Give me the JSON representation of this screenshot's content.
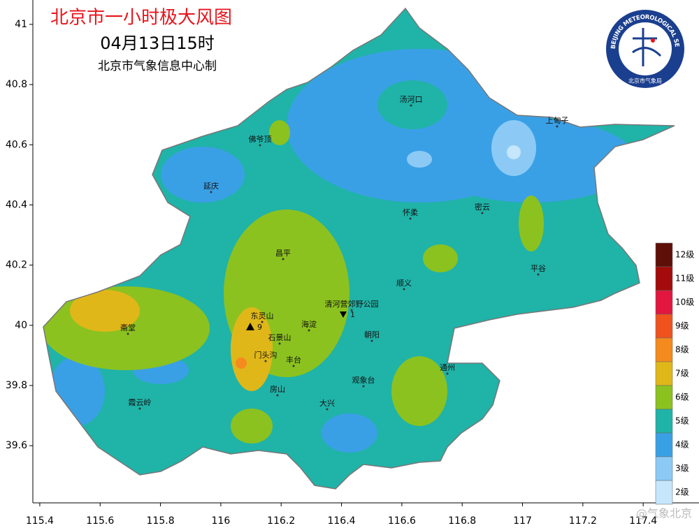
{
  "header": {
    "title": "北京市一小时极大风图",
    "time": "04月13日15时",
    "producer": "北京市气象信息中心制"
  },
  "logo": {
    "ring_text": "BEIJING METEOROLOGICAL SERVICE",
    "org": "北京市气象局"
  },
  "axes": {
    "xlim": [
      115.377,
      117.585
    ],
    "ylim": [
      39.41,
      41.081
    ],
    "xticks": [
      115.4,
      115.6,
      115.8,
      116,
      116.2,
      116.4,
      116.6,
      116.8,
      117,
      117.2,
      117.4
    ],
    "yticks": [
      39.6,
      39.8,
      40,
      40.2,
      40.4,
      40.6,
      40.8,
      41
    ]
  },
  "places": [
    "汤河口",
    "上甸子",
    "佛爷顶",
    "延庆",
    "密云",
    "怀柔",
    "昌平",
    "平谷",
    "顺义",
    "清河营郊野公园",
    "东灵山",
    "海淀",
    "斋堂",
    "石景山",
    "朝阳",
    "门头沟",
    "丰台",
    "通州",
    "观象台",
    "房山",
    "霞云岭",
    "大兴"
  ],
  "stations": [
    {
      "label": "9"
    },
    {
      "label": "1"
    }
  ],
  "legend": [
    {
      "label": "12级",
      "color": "#5e1008"
    },
    {
      "label": "11级",
      "color": "#a40b0b"
    },
    {
      "label": "10级",
      "color": "#e2163e"
    },
    {
      "label": "9级",
      "color": "#f0521e"
    },
    {
      "label": "8级",
      "color": "#f58a1e"
    },
    {
      "label": "7级",
      "color": "#e0b719"
    },
    {
      "label": "6级",
      "color": "#8cc21f"
    },
    {
      "label": "5级",
      "color": "#20b3a8"
    },
    {
      "label": "4级",
      "color": "#3aa0e6"
    },
    {
      "label": "3级",
      "color": "#8ccaf5"
    },
    {
      "label": "2级",
      "color": "#c5e6fb"
    }
  ],
  "watermark": "@气象北京"
}
